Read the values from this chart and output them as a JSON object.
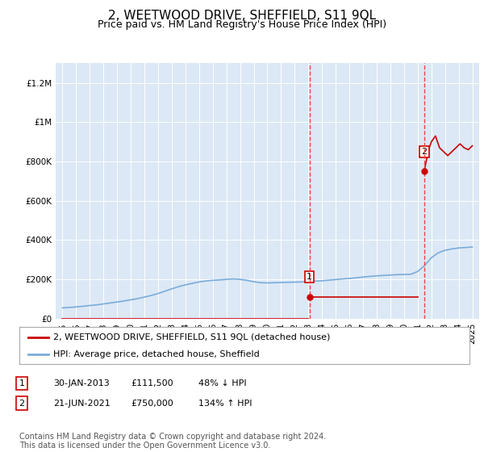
{
  "title": "2, WEETWOOD DRIVE, SHEFFIELD, S11 9QL",
  "subtitle": "Price paid vs. HM Land Registry's House Price Index (HPI)",
  "title_fontsize": 11,
  "subtitle_fontsize": 9,
  "background_color": "#ffffff",
  "plot_bg_color": "#dce8f5",
  "grid_color": "#ffffff",
  "ylim": [
    0,
    1300000
  ],
  "yticks": [
    0,
    200000,
    400000,
    600000,
    800000,
    1000000,
    1200000
  ],
  "ytick_labels": [
    "£0",
    "£200K",
    "£400K",
    "£600K",
    "£800K",
    "£1M",
    "£1.2M"
  ],
  "xmin_year": 1994.5,
  "xmax_year": 2025.5,
  "xtick_years": [
    1995,
    1996,
    1997,
    1998,
    1999,
    2000,
    2001,
    2002,
    2003,
    2004,
    2005,
    2006,
    2007,
    2008,
    2009,
    2010,
    2011,
    2012,
    2013,
    2014,
    2015,
    2016,
    2017,
    2018,
    2019,
    2020,
    2021,
    2022,
    2023,
    2024,
    2025
  ],
  "hpi_years": [
    1995,
    1995.5,
    1996,
    1996.5,
    1997,
    1997.5,
    1998,
    1998.5,
    1999,
    1999.5,
    2000,
    2000.5,
    2001,
    2001.5,
    2002,
    2002.5,
    2003,
    2003.5,
    2004,
    2004.5,
    2005,
    2005.5,
    2006,
    2006.5,
    2007,
    2007.5,
    2008,
    2008.5,
    2009,
    2009.5,
    2010,
    2010.5,
    2011,
    2011.5,
    2012,
    2012.5,
    2013,
    2013.5,
    2014,
    2014.5,
    2015,
    2015.5,
    2016,
    2016.5,
    2017,
    2017.5,
    2018,
    2018.5,
    2019,
    2019.5,
    2020,
    2020.5,
    2021,
    2021.5,
    2022,
    2022.5,
    2023,
    2023.5,
    2024,
    2024.5,
    2025
  ],
  "hpi_values": [
    55000,
    57000,
    60000,
    63000,
    67000,
    70000,
    75000,
    80000,
    85000,
    90000,
    96000,
    102000,
    110000,
    118000,
    128000,
    140000,
    152000,
    163000,
    172000,
    180000,
    187000,
    192000,
    195000,
    197000,
    200000,
    202000,
    200000,
    195000,
    188000,
    183000,
    182000,
    183000,
    184000,
    185000,
    186000,
    187000,
    189000,
    191000,
    193000,
    196000,
    199000,
    202000,
    205000,
    208000,
    212000,
    215000,
    218000,
    220000,
    222000,
    224000,
    225000,
    226000,
    240000,
    270000,
    310000,
    335000,
    348000,
    355000,
    360000,
    362000,
    365000
  ],
  "red_years_seg1": [
    1995,
    2013.0
  ],
  "red_values_seg1": [
    0,
    0
  ],
  "red_point1_year": 2013.08,
  "red_point1_value": 111500,
  "red_years_seg2": [
    2013.08,
    2021.0
  ],
  "red_values_seg2": [
    111500,
    111500
  ],
  "red_point2_year": 2021.47,
  "red_point2_value": 750000,
  "red_years_seg3": [
    2021.47,
    2021.8,
    2022.0,
    2022.3,
    2022.6,
    2022.9,
    2023.2,
    2023.5,
    2023.8,
    2024.1,
    2024.4,
    2024.7,
    2025.0
  ],
  "red_values_seg3": [
    750000,
    860000,
    900000,
    930000,
    870000,
    850000,
    830000,
    850000,
    870000,
    890000,
    870000,
    860000,
    880000
  ],
  "sale1_year": 2013.08,
  "sale1_value": 111500,
  "sale2_year": 2021.47,
  "sale2_value": 750000,
  "sale1_label": "1",
  "sale2_label": "2",
  "red_color": "#cc0000",
  "blue_color": "#7aacda",
  "dashed_color": "#ee4444",
  "legend_label_red": "2, WEETWOOD DRIVE, SHEFFIELD, S11 9QL (detached house)",
  "legend_label_blue": "HPI: Average price, detached house, Sheffield",
  "annotation1": [
    "1",
    "30-JAN-2013",
    "£111,500",
    "48% ↓ HPI"
  ],
  "annotation2": [
    "2",
    "21-JUN-2021",
    "£750,000",
    "134% ↑ HPI"
  ],
  "footnote": "Contains HM Land Registry data © Crown copyright and database right 2024.\nThis data is licensed under the Open Government Licence v3.0.",
  "footnote_fontsize": 7,
  "legend_fontsize": 8,
  "annotation_fontsize": 8,
  "tick_fontsize": 7.5
}
